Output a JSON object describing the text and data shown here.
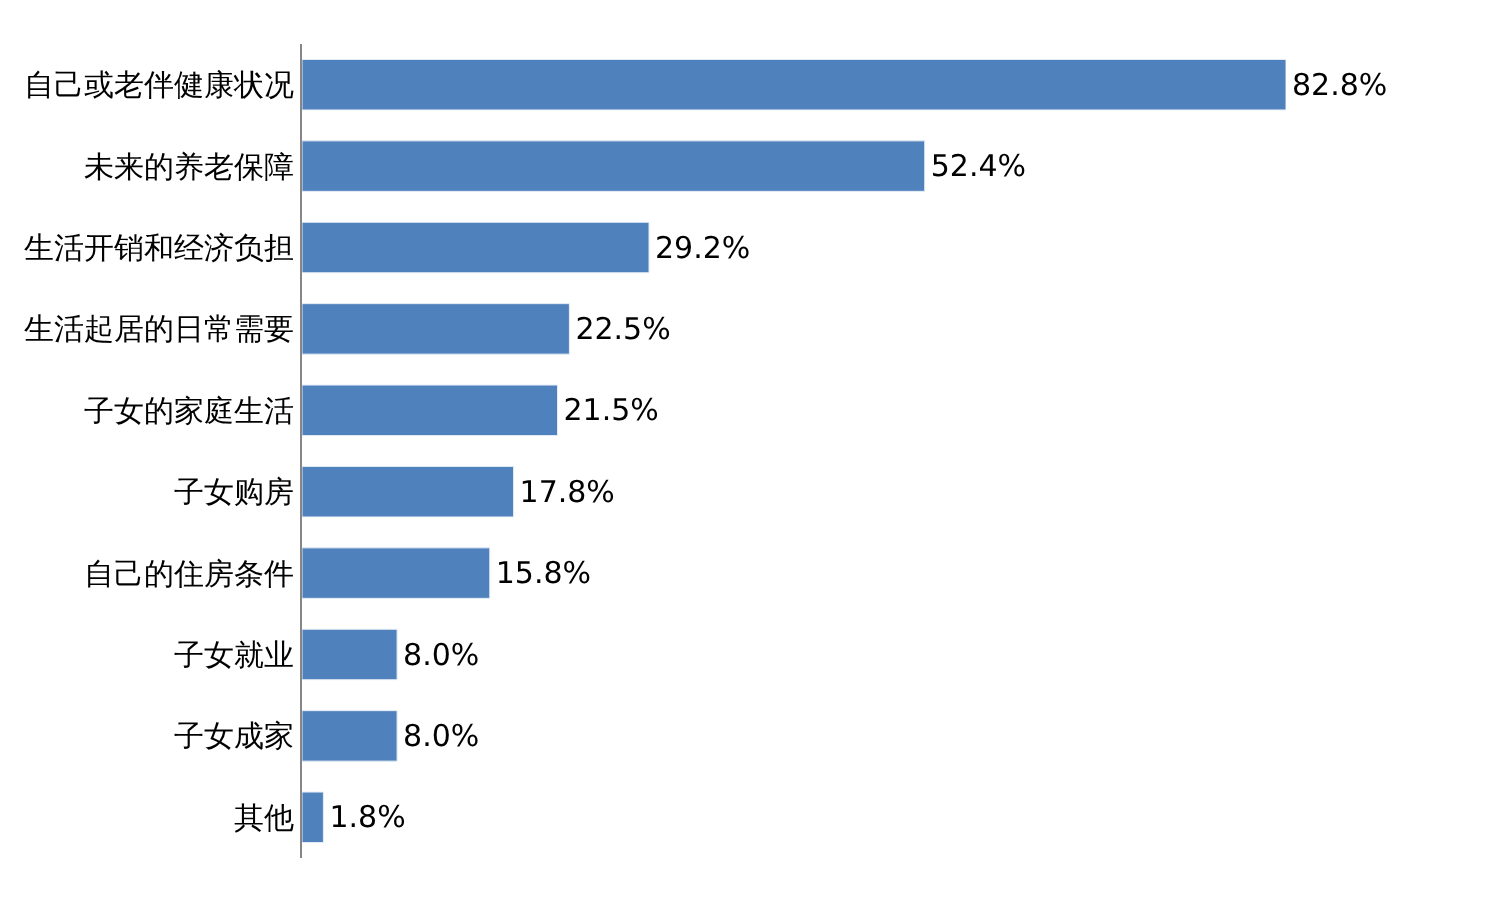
{
  "chart_data": {
    "type": "bar",
    "orientation": "horizontal",
    "categories": [
      "自己或老伴健康状况",
      "未来的养老保障",
      "生活开销和经济负担",
      "生活起居的日常需要",
      "子女的家庭生活",
      "子女购房",
      "自己的住房条件",
      "子女就业",
      "子女成家",
      "其他"
    ],
    "values": [
      82.8,
      52.4,
      29.2,
      22.5,
      21.5,
      17.8,
      15.8,
      8.0,
      8.0,
      1.8
    ],
    "value_labels": [
      "82.8%",
      "52.4%",
      "29.2%",
      "22.5%",
      "21.5%",
      "17.8%",
      "15.8%",
      "8.0%",
      "8.0%",
      "1.8%"
    ],
    "color": "#4f81bd"
  }
}
